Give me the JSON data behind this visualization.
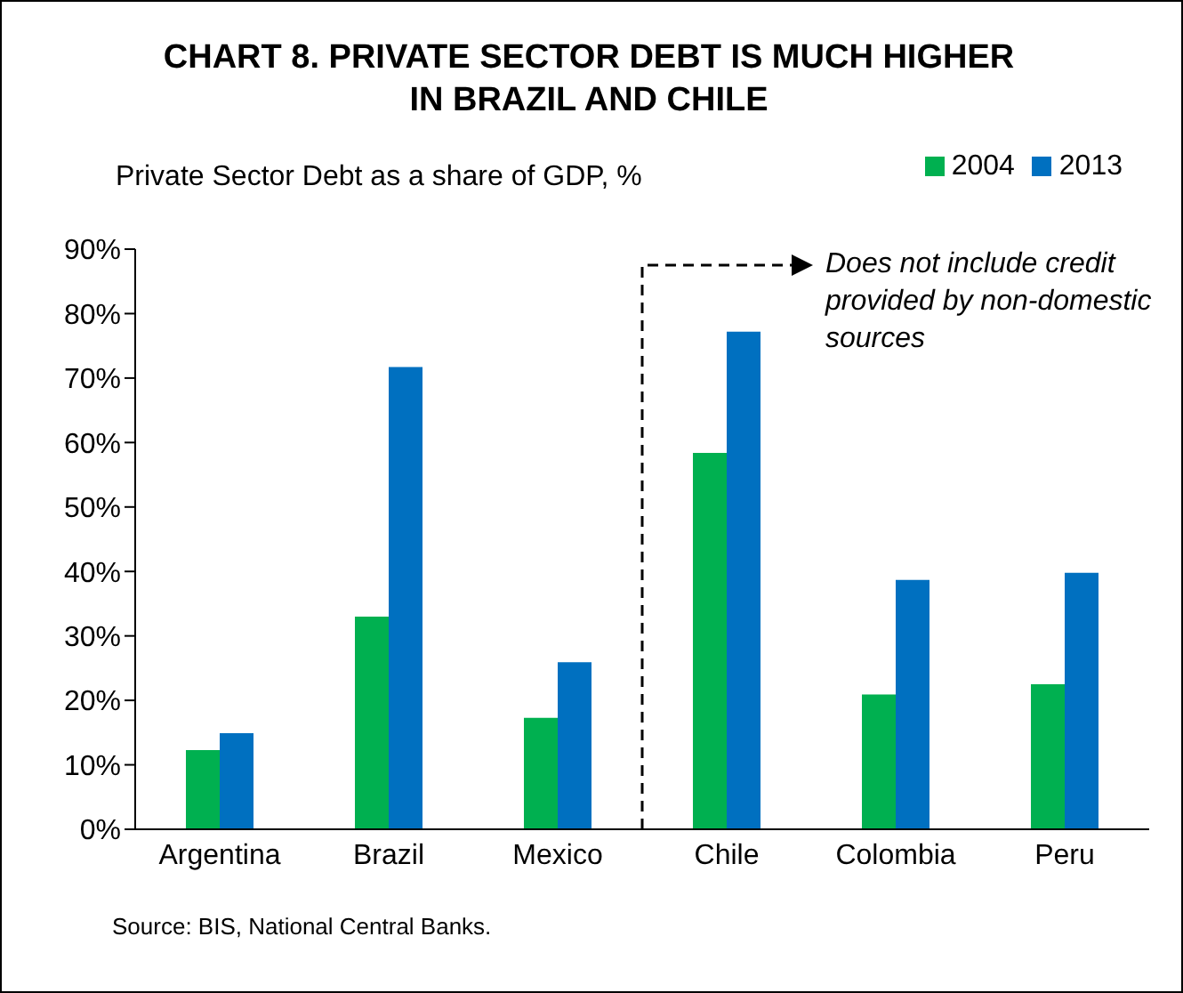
{
  "chart_data": {
    "type": "bar",
    "title": "CHART 8. PRIVATE SECTOR DEBT IS MUCH HIGHER IN BRAZIL AND CHILE",
    "ylabel": "Private Sector Debt as a share of GDP, %",
    "categories": [
      "Argentina",
      "Brazil",
      "Mexico",
      "Chile",
      "Colombia",
      "Peru"
    ],
    "series": [
      {
        "name": "2004",
        "color": "#00b050",
        "values": [
          12.3,
          33,
          17.3,
          58.4,
          20.9,
          22.5
        ]
      },
      {
        "name": "2013",
        "color": "#0070c0",
        "values": [
          14.9,
          71.7,
          25.9,
          77.2,
          38.7,
          39.8
        ]
      }
    ],
    "ylim": [
      0,
      90
    ],
    "yticks": [
      {
        "value": 0,
        "label": "0%"
      },
      {
        "value": 10,
        "label": "10%"
      },
      {
        "value": 20,
        "label": "20%"
      },
      {
        "value": 30,
        "label": "30%"
      },
      {
        "value": 40,
        "label": "40%"
      },
      {
        "value": 50,
        "label": "50%"
      },
      {
        "value": 60,
        "label": "60%"
      },
      {
        "value": 70,
        "label": "70%"
      },
      {
        "value": 80,
        "label": "80%"
      },
      {
        "value": 90,
        "label": "90%"
      }
    ],
    "grid": false,
    "legend": "top right",
    "annotations": [
      "Does not include credit provided by non-domestic sources",
      "Source: BIS, National Central Banks."
    ]
  }
}
